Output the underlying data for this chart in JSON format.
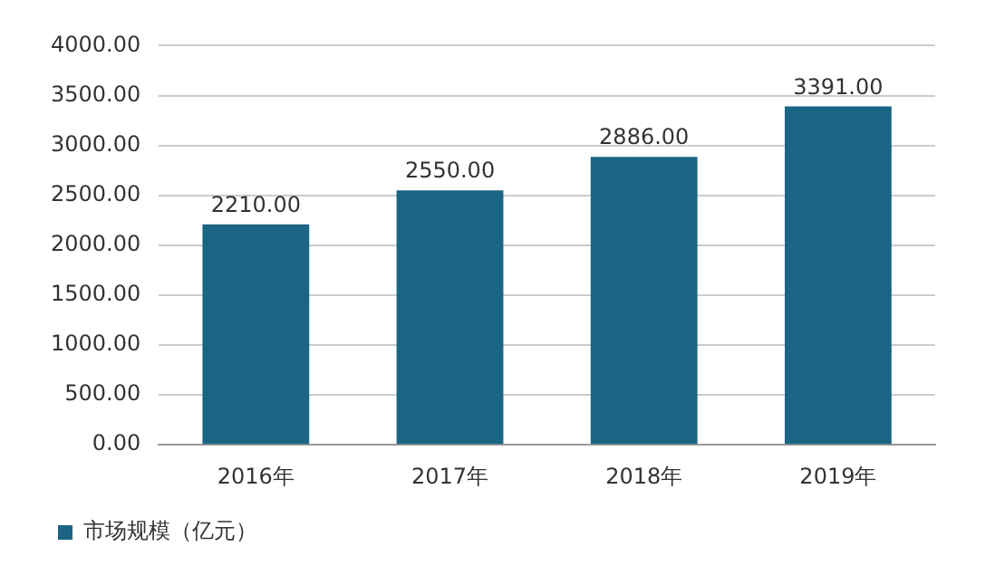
{
  "chart_data": {
    "type": "bar",
    "categories": [
      "2016年",
      "2017年",
      "2018年",
      "2019年"
    ],
    "series": [
      {
        "name": "市场规模（亿元）",
        "color": "#1b6584",
        "values": [
          2210,
          2550,
          2886,
          3391
        ]
      }
    ],
    "value_labels": [
      "2210.00",
      "2550.00",
      "2886.00",
      "3391.00"
    ],
    "ylim": [
      0,
      4000
    ],
    "yticks": [
      {
        "value": 0,
        "label": "0.00"
      },
      {
        "value": 500,
        "label": "500.00"
      },
      {
        "value": 1000,
        "label": "1000.00"
      },
      {
        "value": 1500,
        "label": "1500.00"
      },
      {
        "value": 2000,
        "label": "2000.00"
      },
      {
        "value": 2500,
        "label": "2500.00"
      },
      {
        "value": 3000,
        "label": "3000.00"
      },
      {
        "value": 3500,
        "label": "3500.00"
      },
      {
        "value": 4000,
        "label": "4000.00"
      }
    ],
    "grid": "y",
    "legend": "bottom left"
  }
}
